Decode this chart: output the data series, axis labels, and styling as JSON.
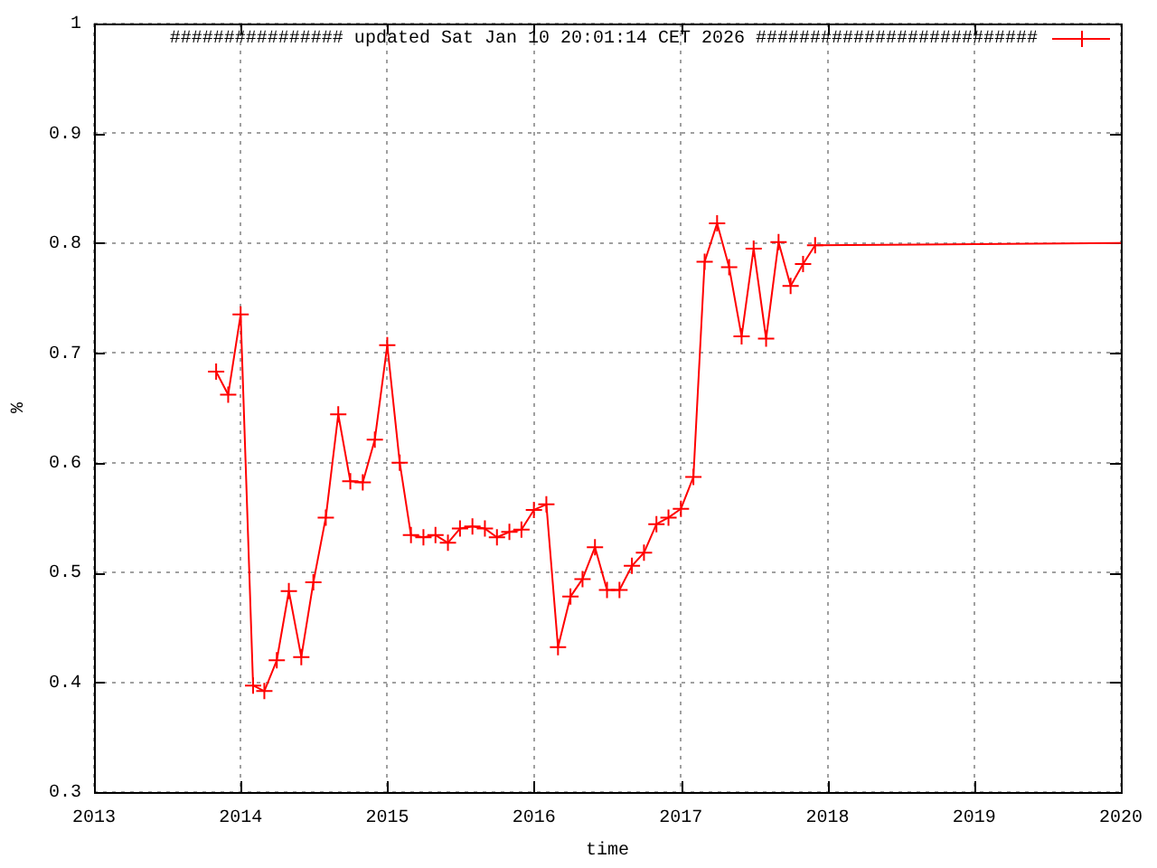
{
  "chart_data": {
    "type": "line",
    "xlabel": "time",
    "ylabel": "%",
    "xlim": [
      "2013",
      "2020"
    ],
    "ylim": [
      0.3,
      1
    ],
    "xticks": [
      {
        "value": "2013",
        "label": "2013"
      },
      {
        "value": "2014",
        "label": "2014"
      },
      {
        "value": "2015",
        "label": "2015"
      },
      {
        "value": "2016",
        "label": "2016"
      },
      {
        "value": "2017",
        "label": "2017"
      },
      {
        "value": "2018",
        "label": "2018"
      },
      {
        "value": "2019",
        "label": "2019"
      },
      {
        "value": "2020",
        "label": "2020"
      }
    ],
    "yticks": [
      0.3,
      0.4,
      0.5,
      0.6,
      0.7,
      0.8,
      0.9,
      1
    ],
    "grid": true,
    "legend": "top right",
    "marker": "cross",
    "line_style": "solid",
    "series": [
      {
        "name": "################ updated Sat Jan 10 20:01:14 CET 2026 ##########################",
        "color": "#ff0000",
        "x": [
          "2013-11",
          "2013-12",
          "2014-01",
          "2014-02",
          "2014-03",
          "2014-04",
          "2014-05",
          "2014-06",
          "2014-07",
          "2014-08",
          "2014-09",
          "2014-10",
          "2014-11",
          "2014-12",
          "2015-01",
          "2015-02",
          "2015-03",
          "2015-04",
          "2015-05",
          "2015-06",
          "2015-07",
          "2015-08",
          "2015-09",
          "2015-10",
          "2015-11",
          "2015-12",
          "2016-01",
          "2016-02",
          "2016-03",
          "2016-04",
          "2016-05",
          "2016-06",
          "2016-07",
          "2016-08",
          "2016-09",
          "2016-10",
          "2016-11",
          "2016-12",
          "2017-01",
          "2017-02",
          "2017-03",
          "2017-04",
          "2017-05",
          "2017-06",
          "2017-07",
          "2017-08",
          "2017-09",
          "2017-10",
          "2017-11",
          "2017-12"
        ],
        "values": [
          0.683,
          0.662,
          0.735,
          0.397,
          0.392,
          0.42,
          0.483,
          0.423,
          0.491,
          0.55,
          0.644,
          0.583,
          0.582,
          0.621,
          0.707,
          0.6,
          0.534,
          0.532,
          0.534,
          0.527,
          0.54,
          0.542,
          0.54,
          0.532,
          0.537,
          0.539,
          0.557,
          0.562,
          0.432,
          0.478,
          0.494,
          0.523,
          0.484,
          0.484,
          0.506,
          0.518,
          0.544,
          0.55,
          0.558,
          0.587,
          0.783,
          0.818,
          0.778,
          0.715,
          0.795,
          0.713,
          0.801,
          0.761,
          0.781,
          0.798
        ]
      },
      {
        "color": "#ff0000",
        "marker": "none",
        "x": [
          "2017-12",
          "2020-01"
        ],
        "values": [
          0.798,
          0.8
        ]
      }
    ]
  }
}
